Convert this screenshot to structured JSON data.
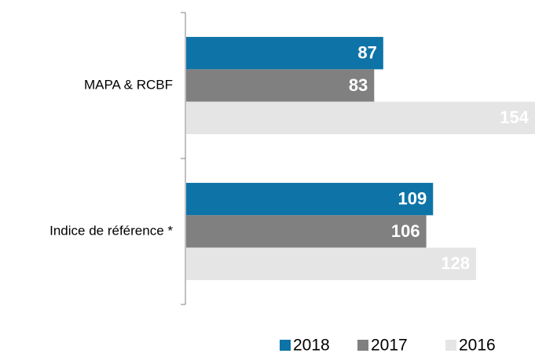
{
  "chart_data": {
    "type": "bar",
    "orientation": "horizontal",
    "categories": [
      "MAPA & RCBF",
      "Indice de référence *"
    ],
    "series": [
      {
        "name": "2018",
        "color": "#0e74a8",
        "values": [
          87,
          109
        ]
      },
      {
        "name": "2017",
        "color": "#808080",
        "values": [
          83,
          106
        ]
      },
      {
        "name": "2016",
        "color": "#e5e5e5",
        "values": [
          154,
          128
        ]
      }
    ],
    "legend": "bottom"
  }
}
